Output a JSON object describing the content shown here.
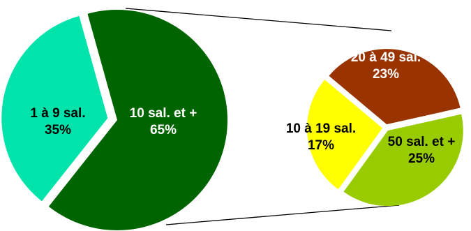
{
  "chart_data": [
    {
      "type": "pie",
      "categories": [
        "1 à 9 sal.",
        "10 sal. et +"
      ],
      "values": [
        35,
        65
      ],
      "value_labels": [
        "35%",
        "65%"
      ],
      "colors": [
        "#00E3AA",
        "#006400"
      ],
      "label_colors": [
        "#000000",
        "#FFFFFF"
      ],
      "exploded": "1 à 9 sal."
    },
    {
      "type": "pie",
      "detail_of": "10 sal. et +",
      "categories": [
        "20 à 49 sal.",
        "50 sal. et +",
        "10 à 19 sal."
      ],
      "values": [
        23,
        25,
        17
      ],
      "value_labels": [
        "23%",
        "25%",
        "17%"
      ],
      "colors": [
        "#993300",
        "#99CC00",
        "#FFFF00"
      ],
      "label_colors": [
        "#FFFFFF",
        "#000000",
        "#000000"
      ]
    }
  ]
}
